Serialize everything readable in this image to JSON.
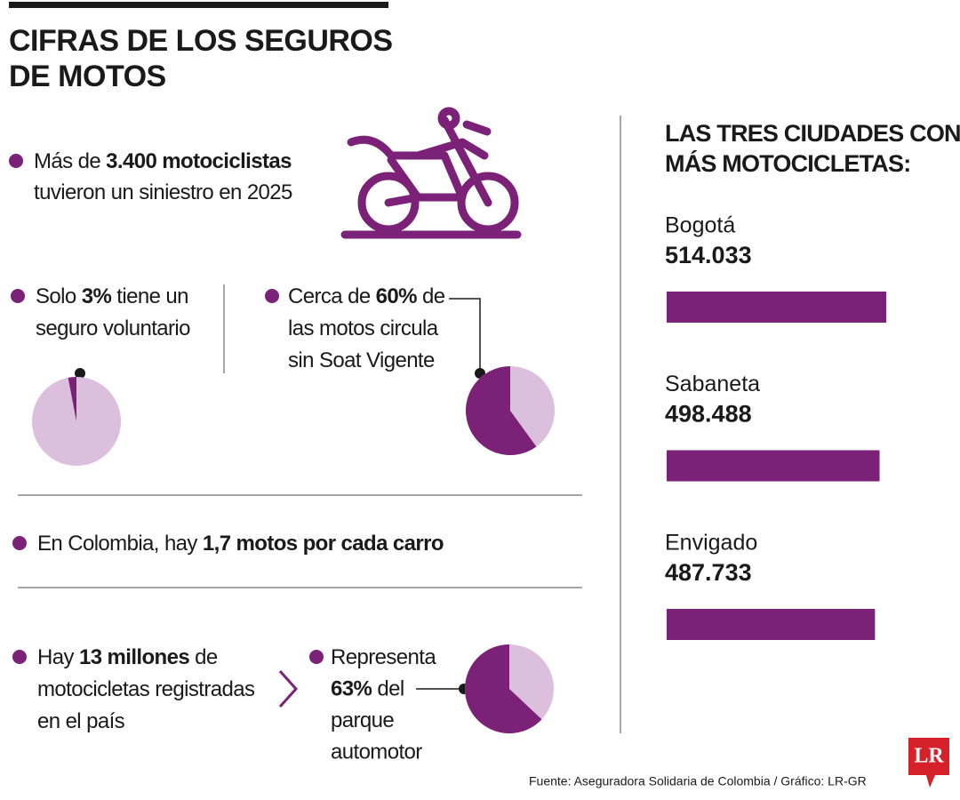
{
  "title": [
    "CIFRAS DE LOS SEGUROS",
    "DE MOTOS"
  ],
  "facts": [
    {
      "lines": [
        [
          {
            "text": "Más de "
          },
          {
            "text": "3.400 motociclistas",
            "bold": true
          }
        ],
        [
          {
            "text": "tuvieron un siniestro en 2025"
          }
        ]
      ]
    },
    {
      "lines": [
        [
          {
            "text": "Solo "
          },
          {
            "text": "3%",
            "bold": true
          },
          {
            "text": " tiene un"
          }
        ],
        [
          {
            "text": "seguro voluntario"
          }
        ]
      ],
      "pie": 3
    },
    {
      "lines": [
        [
          {
            "text": "Cerca de "
          },
          {
            "text": "60%",
            "bold": true
          },
          {
            "text": " de"
          }
        ],
        [
          {
            "text": "las motos circula"
          }
        ],
        [
          {
            "text": "sin Soat Vigente"
          }
        ]
      ],
      "pie": 60
    },
    {
      "lines": [
        [
          {
            "text": "En Colombia, hay "
          },
          {
            "text": "1,7 motos por cada carro",
            "bold": true
          }
        ]
      ]
    },
    {
      "lines": [
        [
          {
            "text": "Hay "
          },
          {
            "text": "13 millones",
            "bold": true
          },
          {
            "text": " de"
          }
        ],
        [
          {
            "text": "motocicletas registradas"
          }
        ],
        [
          {
            "text": "en el país"
          }
        ]
      ]
    },
    {
      "lines": [
        [
          {
            "text": "Representa"
          }
        ],
        [
          {
            "text": "63%",
            "bold": true
          },
          {
            "text": " del"
          }
        ],
        [
          {
            "text": "parque"
          }
        ],
        [
          {
            "text": "automotor"
          }
        ]
      ],
      "pie": 63
    }
  ],
  "pie_colors": {
    "share": "#7b2177",
    "rest": "#dbbfdc"
  },
  "cities": {
    "title": [
      "LAS TRES CIUDADES CON",
      "MÁS MOTOCICLETAS:"
    ],
    "color": "#7b2177",
    "items": [
      {
        "name": "Bogotá",
        "value": 514033,
        "value_label": "514.033"
      },
      {
        "name": "Sabaneta",
        "value": 498488,
        "value_label": "498.488"
      },
      {
        "name": "Envigado",
        "value": 487733,
        "value_label": "487.733"
      }
    ]
  },
  "source": "Fuente: Aseguradora Solidaria de Colombia  / Gráfico: LR-GR",
  "logo": "LR"
}
